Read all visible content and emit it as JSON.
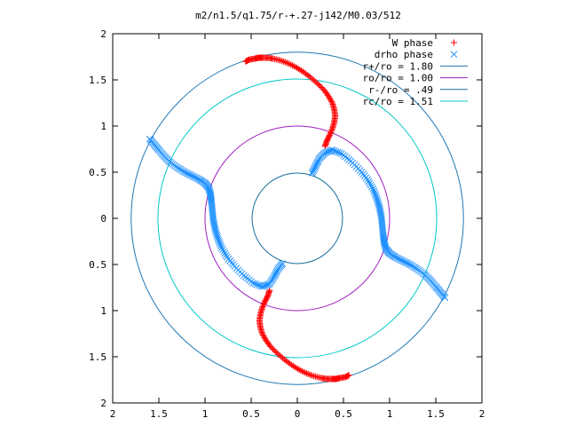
{
  "chart_data": {
    "type": "scatter",
    "title": "m2/n1.5/q1.75/r-+.27-j142/M0.03/512",
    "xlabel": "",
    "ylabel": "",
    "xlim": [
      -2,
      2
    ],
    "ylim": [
      -2,
      2
    ],
    "x_ticks": [
      -2,
      -1.5,
      -1,
      -0.5,
      0,
      0.5,
      1,
      1.5,
      2
    ],
    "x_tick_labels": [
      "2",
      "1.5",
      "1",
      "0.5",
      "0",
      "0.5",
      "1",
      "1.5",
      "2"
    ],
    "y_ticks": [
      -2,
      -1.5,
      -1,
      -0.5,
      0,
      0.5,
      1,
      1.5,
      2
    ],
    "y_tick_labels": [
      "2",
      "1.5",
      "1",
      "0.5",
      "0",
      "0.5",
      "1",
      "1.5",
      "2"
    ],
    "grid": false,
    "legend_position": "top-right",
    "circles": [
      {
        "name": "r+/ro = 1.80",
        "r": 1.8,
        "color": "#1f78b4"
      },
      {
        "name": "ro/ro = 1.00",
        "r": 1.0,
        "color": "#a020c0"
      },
      {
        "name": "r-/ro = .49",
        "r": 0.49,
        "color": "#1a6fa0"
      },
      {
        "name": "rc/ro = 1.51",
        "r": 1.51,
        "color": "#00c8c8"
      }
    ],
    "series": [
      {
        "name": "W phase",
        "marker": "+",
        "color": "#ff0000",
        "points": [
          [
            -0.56,
            1.7
          ],
          [
            -0.52,
            1.72
          ],
          [
            -0.46,
            1.73
          ],
          [
            -0.42,
            1.74
          ],
          [
            -0.38,
            1.74
          ],
          [
            -0.32,
            1.74
          ],
          [
            -0.26,
            1.73
          ],
          [
            -0.18,
            1.71
          ],
          [
            -0.1,
            1.68
          ],
          [
            -0.02,
            1.64
          ],
          [
            0.06,
            1.59
          ],
          [
            0.14,
            1.53
          ],
          [
            0.22,
            1.46
          ],
          [
            0.29,
            1.39
          ],
          [
            0.34,
            1.32
          ],
          [
            0.38,
            1.25
          ],
          [
            0.4,
            1.18
          ],
          [
            0.41,
            1.11
          ],
          [
            0.4,
            1.04
          ],
          [
            0.38,
            0.97
          ],
          [
            0.35,
            0.9
          ],
          [
            0.32,
            0.84
          ],
          [
            0.3,
            0.78
          ],
          [
            0.56,
            -1.7
          ],
          [
            0.52,
            -1.72
          ],
          [
            0.46,
            -1.73
          ],
          [
            0.42,
            -1.74
          ],
          [
            0.38,
            -1.74
          ],
          [
            0.32,
            -1.74
          ],
          [
            0.26,
            -1.73
          ],
          [
            0.18,
            -1.71
          ],
          [
            0.1,
            -1.68
          ],
          [
            0.02,
            -1.64
          ],
          [
            -0.06,
            -1.59
          ],
          [
            -0.14,
            -1.53
          ],
          [
            -0.22,
            -1.46
          ],
          [
            -0.29,
            -1.39
          ],
          [
            -0.34,
            -1.32
          ],
          [
            -0.38,
            -1.25
          ],
          [
            -0.4,
            -1.18
          ],
          [
            -0.41,
            -1.11
          ],
          [
            -0.4,
            -1.04
          ],
          [
            -0.38,
            -0.97
          ],
          [
            -0.35,
            -0.9
          ],
          [
            -0.32,
            -0.84
          ],
          [
            -0.3,
            -0.78
          ]
        ]
      },
      {
        "name": "drho phase",
        "marker": "x",
        "color": "#1e90ff",
        "points": [
          [
            -1.6,
            0.86
          ],
          [
            -1.55,
            0.8
          ],
          [
            -1.5,
            0.74
          ],
          [
            -1.44,
            0.67
          ],
          [
            -1.38,
            0.61
          ],
          [
            -1.3,
            0.55
          ],
          [
            -1.22,
            0.5
          ],
          [
            -1.14,
            0.46
          ],
          [
            -1.06,
            0.42
          ],
          [
            -1.0,
            0.38
          ],
          [
            -0.96,
            0.33
          ],
          [
            -0.94,
            0.26
          ],
          [
            -0.93,
            0.18
          ],
          [
            -0.92,
            0.08
          ],
          [
            -0.91,
            -0.02
          ],
          [
            -0.89,
            -0.12
          ],
          [
            -0.86,
            -0.22
          ],
          [
            -0.82,
            -0.32
          ],
          [
            -0.76,
            -0.42
          ],
          [
            -0.68,
            -0.52
          ],
          [
            -0.58,
            -0.62
          ],
          [
            -0.48,
            -0.7
          ],
          [
            -0.38,
            -0.74
          ],
          [
            -0.3,
            -0.71
          ],
          [
            -0.25,
            -0.63
          ],
          [
            -0.21,
            -0.55
          ],
          [
            -0.16,
            -0.49
          ],
          [
            0.16,
            0.49
          ],
          [
            0.2,
            0.57
          ],
          [
            0.24,
            0.65
          ],
          [
            0.3,
            0.71
          ],
          [
            0.38,
            0.74
          ],
          [
            0.48,
            0.7
          ],
          [
            0.58,
            0.62
          ],
          [
            0.68,
            0.52
          ],
          [
            0.76,
            0.42
          ],
          [
            0.82,
            0.32
          ],
          [
            0.86,
            0.22
          ],
          [
            0.89,
            0.12
          ],
          [
            0.91,
            0.02
          ],
          [
            0.92,
            -0.08
          ],
          [
            0.93,
            -0.18
          ],
          [
            0.94,
            -0.26
          ],
          [
            0.96,
            -0.33
          ],
          [
            1.0,
            -0.38
          ],
          [
            1.06,
            -0.42
          ],
          [
            1.14,
            -0.46
          ],
          [
            1.22,
            -0.5
          ],
          [
            1.3,
            -0.55
          ],
          [
            1.38,
            -0.61
          ],
          [
            1.44,
            -0.67
          ],
          [
            1.5,
            -0.74
          ],
          [
            1.55,
            -0.8
          ],
          [
            1.6,
            -0.86
          ]
        ]
      }
    ]
  }
}
